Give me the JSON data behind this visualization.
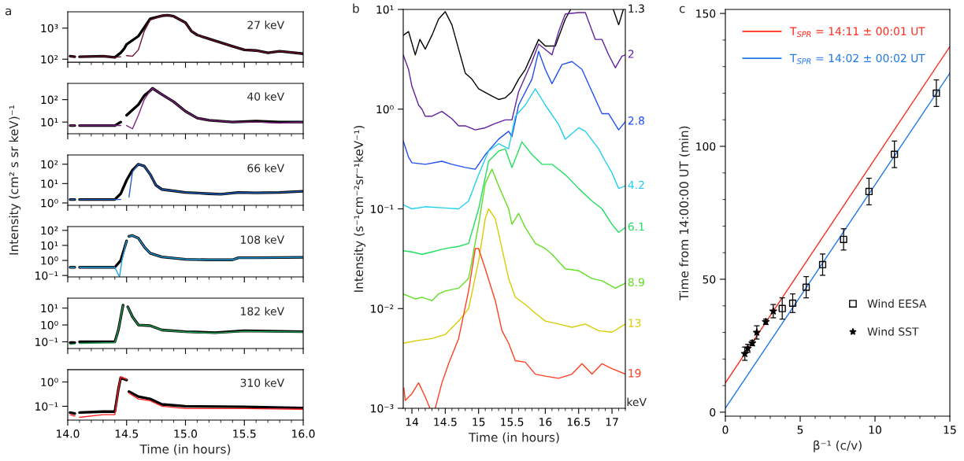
{
  "chart_data": [
    {
      "type": "line",
      "title": "27 keV",
      "annotations": [
        "a"
      ],
      "log": "y",
      "ylim": [
        80,
        3350
      ],
      "yticks": [
        {
          "value": 100,
          "label": "10²"
        },
        {
          "value": 1000,
          "label": "10³"
        }
      ],
      "xlim": [
        14.0,
        16.0
      ],
      "xticks": [
        14.0,
        14.5,
        15.0,
        15.5,
        16.0,
        {
          "value": 14.1,
          "label": null
        },
        {
          "value": 14.2,
          "label": null
        },
        {
          "value": 14.3,
          "label": null
        },
        {
          "value": 14.4,
          "label": null
        },
        {
          "value": 14.6,
          "label": null
        },
        {
          "value": 14.7,
          "label": null
        },
        {
          "value": 14.8,
          "label": null
        },
        {
          "value": 14.9,
          "label": null
        },
        {
          "value": 15.1,
          "label": null
        },
        {
          "value": 15.2,
          "label": null
        },
        {
          "value": 15.3,
          "label": null
        },
        {
          "value": 15.4,
          "label": null
        },
        {
          "value": 15.6,
          "label": null
        },
        {
          "value": 15.7,
          "label": null
        },
        {
          "value": 15.8,
          "label": null
        },
        {
          "value": 15.9,
          "label": null
        }
      ],
      "tick_labels": "y",
      "series": [
        {
          "color": "#000000",
          "x": [
            14.02,
            14.06,
            14.08,
            14.1,
            14.3,
            14.4,
            14.45,
            14.48,
            14.5,
            14.6,
            14.7,
            14.8,
            14.85,
            14.9,
            15.0,
            15.05,
            15.1,
            15.2,
            15.4,
            15.5,
            15.6,
            15.7,
            15.8,
            16.0
          ],
          "values": [
            125,
            120,
            null,
            120,
            125,
            115,
            160,
            220,
            300,
            550,
            2000,
            2500,
            2600,
            2400,
            1500,
            800,
            600,
            450,
            260,
            200,
            190,
            160,
            180,
            150
          ]
        },
        {
          "color": "#6a1030",
          "x": [
            14.02,
            14.06,
            14.08,
            14.1,
            14.3,
            14.4,
            14.45,
            14.48,
            14.5,
            14.55,
            14.6,
            14.65,
            14.7,
            14.8,
            14.85,
            14.9,
            15.0,
            15.05,
            15.1,
            15.2,
            15.4,
            15.5,
            15.6,
            15.7,
            15.8,
            16.0
          ],
          "values": [
            125,
            120,
            null,
            120,
            125,
            115,
            120,
            null,
            130,
            125,
            200,
            800,
            1800,
            2500,
            2600,
            2400,
            1500,
            800,
            600,
            450,
            260,
            200,
            190,
            160,
            180,
            150
          ]
        }
      ]
    },
    {
      "type": "line",
      "title": "40 keV",
      "log": "y",
      "ylim": [
        3,
        530
      ],
      "yticks": [
        {
          "value": 10,
          "label": "10¹"
        },
        {
          "value": 100,
          "label": "10²"
        }
      ],
      "xlim": [
        14.0,
        16.0
      ],
      "xticks": [
        14.0,
        14.5,
        15.0,
        15.5,
        16.0,
        {
          "value": 14.1,
          "label": null
        },
        {
          "value": 14.2,
          "label": null
        },
        {
          "value": 14.3,
          "label": null
        },
        {
          "value": 14.4,
          "label": null
        },
        {
          "value": 14.6,
          "label": null
        },
        {
          "value": 14.7,
          "label": null
        },
        {
          "value": 14.8,
          "label": null
        },
        {
          "value": 14.9,
          "label": null
        },
        {
          "value": 15.1,
          "label": null
        },
        {
          "value": 15.2,
          "label": null
        },
        {
          "value": 15.3,
          "label": null
        },
        {
          "value": 15.4,
          "label": null
        },
        {
          "value": 15.6,
          "label": null
        },
        {
          "value": 15.7,
          "label": null
        },
        {
          "value": 15.8,
          "label": null
        },
        {
          "value": 15.9,
          "label": null
        }
      ],
      "tick_labels": "y",
      "series": [
        {
          "color": "#000000",
          "x": [
            14.02,
            14.06,
            14.08,
            14.1,
            14.3,
            14.4,
            14.45,
            14.48,
            14.5,
            14.6,
            14.65,
            14.7,
            14.72,
            14.8,
            14.9,
            15.0,
            15.1,
            15.2,
            15.4,
            15.6,
            15.8,
            16.0
          ],
          "values": [
            7,
            7,
            null,
            7,
            7,
            7,
            10,
            null,
            20,
            60,
            150,
            250,
            320,
            170,
            80,
            30,
            15,
            12,
            10,
            11,
            10,
            10
          ]
        },
        {
          "color": "#802080",
          "x": [
            14.02,
            14.06,
            14.08,
            14.1,
            14.3,
            14.4,
            14.45,
            14.48,
            14.5,
            14.55,
            14.6,
            14.65,
            14.7,
            14.72,
            14.8,
            14.9,
            15.0,
            15.1,
            15.2,
            15.4,
            15.6,
            15.8,
            16.0
          ],
          "values": [
            7,
            7,
            null,
            7,
            7,
            7,
            7,
            null,
            7,
            5,
            20,
            100,
            250,
            320,
            170,
            80,
            30,
            15,
            12,
            10,
            10,
            9,
            10
          ]
        }
      ]
    },
    {
      "type": "line",
      "title": "66 keV",
      "log": "y",
      "ylabel": "Intensity (cm² s sr keV)⁻¹",
      "ylim": [
        0.75,
        300
      ],
      "yticks": [
        {
          "value": 1,
          "label": "10⁰"
        },
        {
          "value": 10,
          "label": "10¹"
        },
        {
          "value": 100,
          "label": "10²"
        }
      ],
      "xlim": [
        14.0,
        16.0
      ],
      "xticks": [
        14.0,
        14.5,
        15.0,
        15.5,
        16.0,
        {
          "value": 14.1,
          "label": null
        },
        {
          "value": 14.2,
          "label": null
        },
        {
          "value": 14.3,
          "label": null
        },
        {
          "value": 14.4,
          "label": null
        },
        {
          "value": 14.6,
          "label": null
        },
        {
          "value": 14.7,
          "label": null
        },
        {
          "value": 14.8,
          "label": null
        },
        {
          "value": 14.9,
          "label": null
        },
        {
          "value": 15.1,
          "label": null
        },
        {
          "value": 15.2,
          "label": null
        },
        {
          "value": 15.3,
          "label": null
        },
        {
          "value": 15.4,
          "label": null
        },
        {
          "value": 15.6,
          "label": null
        },
        {
          "value": 15.7,
          "label": null
        },
        {
          "value": 15.8,
          "label": null
        },
        {
          "value": 15.9,
          "label": null
        }
      ],
      "tick_labels": "y",
      "series": [
        {
          "color": "#000000",
          "x": [
            14.02,
            14.06,
            14.08,
            14.1,
            14.4,
            14.45,
            14.5,
            14.55,
            14.6,
            14.65,
            14.7,
            14.75,
            14.8,
            15.0,
            15.2,
            15.3,
            15.45,
            15.6,
            15.8,
            16.0
          ],
          "values": [
            1.5,
            1.5,
            null,
            1.5,
            1.5,
            3,
            15,
            50,
            100,
            80,
            30,
            8,
            5,
            3.5,
            3,
            2.8,
            3.5,
            3.3,
            3.5,
            4
          ]
        },
        {
          "color": "#2060c0",
          "x": [
            14.02,
            14.06,
            14.08,
            14.1,
            14.45,
            14.48,
            14.52,
            14.55,
            14.6,
            14.65,
            14.7,
            14.75,
            14.8,
            15.0,
            15.2,
            15.3,
            15.45,
            15.6,
            15.8,
            16.0
          ],
          "values": [
            1.5,
            1.5,
            null,
            1.5,
            1.5,
            null,
            2,
            40,
            100,
            80,
            30,
            8,
            5,
            3.5,
            3,
            2.8,
            3.5,
            3.3,
            3.5,
            4
          ]
        }
      ]
    },
    {
      "type": "line",
      "title": "108 keV",
      "log": "y",
      "ylim": [
        0.08,
        180
      ],
      "yticks": [
        {
          "value": 0.1,
          "label": "10⁻¹"
        },
        {
          "value": 1,
          "label": "10⁰"
        },
        {
          "value": 10,
          "label": "10¹"
        },
        {
          "value": 100,
          "label": "10²"
        }
      ],
      "xlim": [
        14.0,
        16.0
      ],
      "xticks": [
        14.0,
        14.5,
        15.0,
        15.5,
        16.0,
        {
          "value": 14.1,
          "label": null
        },
        {
          "value": 14.2,
          "label": null
        },
        {
          "value": 14.3,
          "label": null
        },
        {
          "value": 14.4,
          "label": null
        },
        {
          "value": 14.6,
          "label": null
        },
        {
          "value": 14.7,
          "label": null
        },
        {
          "value": 14.8,
          "label": null
        },
        {
          "value": 14.9,
          "label": null
        },
        {
          "value": 15.1,
          "label": null
        },
        {
          "value": 15.2,
          "label": null
        },
        {
          "value": 15.3,
          "label": null
        },
        {
          "value": 15.4,
          "label": null
        },
        {
          "value": 15.6,
          "label": null
        },
        {
          "value": 15.7,
          "label": null
        },
        {
          "value": 15.8,
          "label": null
        },
        {
          "value": 15.9,
          "label": null
        }
      ],
      "tick_labels": "y",
      "series": [
        {
          "color": "#000000",
          "x": [
            14.02,
            14.06,
            14.08,
            14.1,
            14.4,
            14.45,
            14.5,
            14.51,
            14.52,
            14.55,
            14.6,
            14.65,
            14.7,
            14.8,
            15.0,
            15.2,
            15.4,
            15.45,
            15.6,
            16.0
          ],
          "values": [
            0.35,
            0.35,
            null,
            0.35,
            0.35,
            1,
            20,
            null,
            40,
            45,
            30,
            8,
            3,
            1.7,
            1.2,
            1.1,
            1.1,
            1.5,
            1.5,
            1.6
          ]
        },
        {
          "color": "#20a0e0",
          "x": [
            14.02,
            14.06,
            14.08,
            14.1,
            14.4,
            14.44,
            14.46,
            14.5,
            14.51,
            14.52,
            14.55,
            14.6,
            14.65,
            14.7,
            14.8,
            15.0,
            15.2,
            15.4,
            15.45,
            15.6,
            16.0
          ],
          "values": [
            0.35,
            0.35,
            null,
            0.35,
            0.35,
            0.08,
            1,
            20,
            null,
            40,
            45,
            30,
            8,
            3,
            1.7,
            1.2,
            1.1,
            1.1,
            1.5,
            1.5,
            1.6
          ]
        }
      ]
    },
    {
      "type": "line",
      "title": "182 keV",
      "log": "y",
      "ylim": [
        0.04,
        39
      ],
      "yticks": [
        {
          "value": 0.1,
          "label": "10⁻¹"
        },
        {
          "value": 1,
          "label": "10⁰"
        },
        {
          "value": 10,
          "label": "10¹"
        }
      ],
      "xlim": [
        14.0,
        16.0
      ],
      "xticks": [
        14.0,
        14.5,
        15.0,
        15.5,
        16.0,
        {
          "value": 14.1,
          "label": null
        },
        {
          "value": 14.2,
          "label": null
        },
        {
          "value": 14.3,
          "label": null
        },
        {
          "value": 14.4,
          "label": null
        },
        {
          "value": 14.6,
          "label": null
        },
        {
          "value": 14.7,
          "label": null
        },
        {
          "value": 14.8,
          "label": null
        },
        {
          "value": 14.9,
          "label": null
        },
        {
          "value": 15.1,
          "label": null
        },
        {
          "value": 15.2,
          "label": null
        },
        {
          "value": 15.3,
          "label": null
        },
        {
          "value": 15.4,
          "label": null
        },
        {
          "value": 15.6,
          "label": null
        },
        {
          "value": 15.7,
          "label": null
        },
        {
          "value": 15.8,
          "label": null
        },
        {
          "value": 15.9,
          "label": null
        }
      ],
      "tick_labels": "y",
      "series": [
        {
          "color": "#000000",
          "x": [
            14.02,
            14.06,
            14.08,
            14.1,
            14.4,
            14.43,
            14.47,
            14.49,
            14.51,
            14.55,
            14.6,
            14.7,
            14.8,
            15.0,
            15.25,
            15.5,
            16.0
          ],
          "values": [
            0.09,
            0.09,
            null,
            0.1,
            0.1,
            0.5,
            15,
            null,
            12,
            3,
            1,
            0.9,
            0.5,
            0.4,
            0.35,
            0.45,
            0.4
          ]
        },
        {
          "color": "#20a050",
          "x": [
            14.02,
            14.06,
            14.08,
            14.1,
            14.4,
            14.43,
            14.47,
            14.49,
            14.51,
            14.55,
            14.6,
            14.7,
            14.8,
            15.0,
            15.25,
            15.5,
            16.0
          ],
          "values": [
            0.07,
            0.075,
            null,
            0.08,
            0.09,
            0.5,
            15,
            null,
            12,
            3,
            1,
            0.9,
            0.5,
            0.38,
            0.33,
            0.42,
            0.38
          ]
        }
      ]
    },
    {
      "type": "line",
      "title": "310 keV",
      "xlabel": "Time (in hours)",
      "log": "y",
      "ylim": [
        0.027,
        3.2
      ],
      "yticks": [
        {
          "value": 0.1,
          "label": "10⁻¹"
        },
        {
          "value": 1,
          "label": "10⁰"
        }
      ],
      "xlim": [
        14.0,
        16.0
      ],
      "xticks": [
        {
          "value": 14,
          "label": "14.0"
        },
        14.5,
        {
          "value": 15,
          "label": "15.0"
        },
        15.5,
        {
          "value": 16,
          "label": "16.0"
        },
        {
          "value": 14.1,
          "label": null
        },
        {
          "value": 14.2,
          "label": null
        },
        {
          "value": 14.3,
          "label": null
        },
        {
          "value": 14.4,
          "label": null
        },
        {
          "value": 14.6,
          "label": null
        },
        {
          "value": 14.7,
          "label": null
        },
        {
          "value": 14.8,
          "label": null
        },
        {
          "value": 14.9,
          "label": null
        },
        {
          "value": 15.1,
          "label": null
        },
        {
          "value": 15.2,
          "label": null
        },
        {
          "value": 15.3,
          "label": null
        },
        {
          "value": 15.4,
          "label": null
        },
        {
          "value": 15.6,
          "label": null
        },
        {
          "value": 15.7,
          "label": null
        },
        {
          "value": 15.8,
          "label": null
        },
        {
          "value": 15.9,
          "label": null
        }
      ],
      "series": [
        {
          "color": "#000000",
          "x": [
            14.02,
            14.06,
            14.08,
            14.1,
            14.3,
            14.4,
            14.43,
            14.45,
            14.5,
            14.51,
            14.52,
            14.6,
            14.7,
            14.8,
            15.0,
            15.5,
            16.0
          ],
          "values": [
            0.055,
            0.05,
            null,
            0.055,
            0.06,
            0.06,
            0.5,
            1.5,
            1.2,
            null,
            0.4,
            0.25,
            0.2,
            0.12,
            0.1,
            0.095,
            0.085
          ]
        },
        {
          "color": "#ff2020",
          "x": [
            14.02,
            14.06,
            14.08,
            14.1,
            14.3,
            14.4,
            14.43,
            14.45,
            14.5,
            14.51,
            14.52,
            14.6,
            14.7,
            14.8,
            15.0,
            15.5,
            16.0
          ],
          "values": [
            0.045,
            0.04,
            null,
            0.035,
            0.045,
            0.045,
            0.5,
            1.6,
            1.3,
            null,
            0.35,
            0.2,
            0.17,
            0.1,
            0.08,
            0.08,
            0.075
          ]
        }
      ]
    },
    {
      "type": "line",
      "annotations": [
        "b",
        "keV"
      ],
      "ylabel": "Intensity (s⁻¹cm⁻²sr⁻¹keV⁻¹)",
      "xlabel": "Time (in hours)",
      "log": "y",
      "legend": false,
      "ylim": [
        0.001,
        10
      ],
      "yticks": [
        {
          "value": 0.001,
          "label": "10⁻³"
        },
        {
          "value": 0.01,
          "label": "10⁻²"
        },
        {
          "value": 0.1,
          "label": "10⁻¹"
        },
        {
          "value": 1,
          "label": "10⁰"
        },
        {
          "value": 10,
          "label": "10¹"
        }
      ],
      "xlim": [
        13.87,
        17.2
      ],
      "xticks": [
        14,
        14.5,
        15,
        15.5,
        16,
        16.5,
        17,
        {
          "value": 13.9,
          "label": null
        },
        {
          "value": 14.1,
          "label": null
        },
        {
          "value": 14.2,
          "label": null
        },
        {
          "value": 14.3,
          "label": null
        },
        {
          "value": 14.4,
          "label": null
        },
        {
          "value": 14.6,
          "label": null
        },
        {
          "value": 14.7,
          "label": null
        },
        {
          "value": 14.8,
          "label": null
        },
        {
          "value": 14.9,
          "label": null
        },
        {
          "value": 15.1,
          "label": null
        },
        {
          "value": 15.2,
          "label": null
        },
        {
          "value": 15.3,
          "label": null
        },
        {
          "value": 15.4,
          "label": null
        },
        {
          "value": 15.6,
          "label": null
        },
        {
          "value": 15.7,
          "label": null
        },
        {
          "value": 15.8,
          "label": null
        },
        {
          "value": 15.9,
          "label": null
        },
        {
          "value": 16.1,
          "label": null
        },
        {
          "value": 16.2,
          "label": null
        },
        {
          "value": 16.3,
          "label": null
        },
        {
          "value": 16.4,
          "label": null
        },
        {
          "value": 16.6,
          "label": null
        },
        {
          "value": 16.7,
          "label": null
        },
        {
          "value": 16.8,
          "label": null
        },
        {
          "value": 16.9,
          "label": null
        },
        {
          "value": 17.1,
          "label": null
        },
        {
          "value": 17.2,
          "label": null
        }
      ],
      "series": [
        {
          "name": "1.3",
          "color": "#000000",
          "x": [
            13.87,
            13.95,
            14.05,
            14.12,
            14.2,
            14.3,
            14.4,
            14.5,
            14.6,
            14.7,
            14.8,
            14.9,
            15.0,
            15.2,
            15.3,
            15.4,
            15.5,
            15.6,
            15.7,
            15.9,
            16.0,
            16.15,
            16.3,
            16.38,
            16.5,
            17.02,
            17.1,
            17.17
          ],
          "values": [
            5.5,
            6,
            3.5,
            5,
            4,
            5.5,
            8,
            9.5,
            7,
            4,
            2.3,
            2.0,
            1.6,
            1.35,
            1.25,
            1.3,
            1.5,
            2,
            2.5,
            5,
            4.3,
            4.3,
            8,
            10,
            null,
            10,
            7,
            10
          ]
        },
        {
          "name": "2",
          "color": "#6020a0",
          "x": [
            13.87,
            13.95,
            14.0,
            14.1,
            14.15,
            14.2,
            14.3,
            14.45,
            14.6,
            14.7,
            14.8,
            14.95,
            15.1,
            15.25,
            15.4,
            15.5,
            15.6,
            15.8,
            15.9,
            16.1,
            16.2,
            16.3,
            16.5,
            16.6,
            16.75,
            16.85,
            16.95,
            17.05,
            17.15,
            17.2
          ],
          "values": [
            3.5,
            2.5,
            1.7,
            1.1,
            1.0,
            0.85,
            0.85,
            0.95,
            0.8,
            0.68,
            0.68,
            0.62,
            0.65,
            0.72,
            0.78,
            0.78,
            1.5,
            3,
            4.5,
            3.5,
            6,
            9,
            9.3,
            9.3,
            5,
            5,
            3.5,
            2.6,
            3.4,
            3.5
          ]
        },
        {
          "name": "2.8",
          "color": "#2050f0",
          "x": [
            13.87,
            13.95,
            14.0,
            14.2,
            14.45,
            14.6,
            14.8,
            14.95,
            15.1,
            15.3,
            15.45,
            15.5,
            15.6,
            15.8,
            15.9,
            16.0,
            16.1,
            16.25,
            16.4,
            16.55,
            16.7,
            16.85,
            16.95,
            17.1,
            17.2
          ],
          "values": [
            0.48,
            0.33,
            0.29,
            0.28,
            0.3,
            0.28,
            0.26,
            0.25,
            0.35,
            0.5,
            0.6,
            0.53,
            1.1,
            2.0,
            3.8,
            2.5,
            1.8,
            2.8,
            3.0,
            2.5,
            1.5,
            0.9,
            0.9,
            0.62,
            0.75
          ]
        },
        {
          "name": "4.2",
          "color": "#20d0f0",
          "x": [
            13.87,
            14.0,
            14.2,
            14.5,
            14.7,
            14.85,
            15.0,
            15.15,
            15.3,
            15.45,
            15.55,
            15.7,
            15.85,
            16.0,
            16.2,
            16.3,
            16.5,
            16.6,
            16.8,
            16.9,
            17.0,
            17.1,
            17.2
          ],
          "values": [
            0.11,
            0.1,
            0.105,
            0.102,
            0.1,
            0.12,
            0.22,
            0.38,
            0.45,
            0.4,
            0.85,
            1.1,
            1.6,
            1.1,
            0.7,
            0.5,
            0.65,
            0.6,
            0.4,
            0.3,
            0.23,
            0.16,
            0.17
          ]
        },
        {
          "name": "6.1",
          "color": "#20e060",
          "x": [
            13.87,
            14.0,
            14.15,
            14.3,
            14.5,
            14.7,
            14.85,
            15.0,
            15.15,
            15.3,
            15.4,
            15.5,
            15.65,
            15.8,
            15.95,
            16.1,
            16.3,
            16.5,
            16.7,
            16.85,
            17.0,
            17.1,
            17.2
          ],
          "values": [
            0.038,
            0.037,
            0.035,
            0.037,
            0.04,
            0.042,
            0.045,
            0.1,
            0.3,
            0.38,
            0.4,
            0.26,
            0.47,
            0.35,
            0.28,
            0.28,
            0.22,
            0.16,
            0.12,
            0.1,
            0.07,
            0.058,
            0.065
          ]
        },
        {
          "name": "8.9",
          "color": "#60e020",
          "x": [
            13.87,
            14.05,
            14.15,
            14.3,
            14.4,
            14.5,
            14.7,
            14.85,
            15.0,
            15.1,
            15.2,
            15.3,
            15.45,
            15.5,
            15.6,
            15.7,
            15.85,
            16.0,
            16.1,
            16.3,
            16.5,
            16.7,
            16.85,
            17.05,
            17.2
          ],
          "values": [
            0.014,
            0.0125,
            0.013,
            0.012,
            0.014,
            0.015,
            0.016,
            0.02,
            0.07,
            0.18,
            0.25,
            0.17,
            0.1,
            0.07,
            0.09,
            0.065,
            0.045,
            0.04,
            0.035,
            0.025,
            0.024,
            0.02,
            0.019,
            0.016,
            0.018
          ]
        },
        {
          "name": "13",
          "color": "#d8cc00",
          "x": [
            13.87,
            14.1,
            14.3,
            14.5,
            14.7,
            14.85,
            15.0,
            15.1,
            15.15,
            15.25,
            15.35,
            15.45,
            15.55,
            15.7,
            15.85,
            16.0,
            16.2,
            16.4,
            16.6,
            16.8,
            17.0,
            17.2
          ],
          "values": [
            0.0045,
            0.0048,
            0.005,
            0.0055,
            0.0075,
            0.01,
            0.03,
            0.08,
            0.1,
            0.08,
            0.04,
            0.02,
            0.013,
            0.011,
            0.009,
            0.0075,
            0.007,
            0.0065,
            0.007,
            0.006,
            0.0058,
            0.007
          ]
        },
        {
          "name": "19",
          "color": "#ff4020",
          "x": [
            13.88,
            13.9,
            14.0,
            14.1,
            14.2,
            14.27,
            14.3,
            14.35,
            14.45,
            14.55,
            14.7,
            14.85,
            14.95,
            15.0,
            15.1,
            15.25,
            15.35,
            15.45,
            15.55,
            15.7,
            15.85,
            16.0,
            16.2,
            16.4,
            16.55,
            16.7,
            16.85,
            17.0,
            17.2
          ],
          "values": [
            0.0016,
            0.0012,
            0.0014,
            0.0018,
            0.0013,
            0.001,
            null,
            0.001,
            0.0018,
            0.0028,
            0.005,
            0.015,
            0.04,
            0.04,
            0.025,
            0.012,
            0.006,
            0.0045,
            0.003,
            0.0029,
            0.0022,
            0.0021,
            0.002,
            0.0022,
            0.0028,
            0.0022,
            0.0028,
            0.0025,
            0.0022
          ]
        }
      ]
    },
    {
      "type": "scatter",
      "annotations": [
        "c"
      ],
      "ylabel": "Time from 14:00:00 UT (min)",
      "xlabel": "β⁻¹ (c/v)",
      "legend": "top left",
      "xlim": [
        0,
        15
      ],
      "ylim": [
        -1.5,
        151.5
      ],
      "xticks": [
        0,
        5,
        10,
        15,
        {
          "value": 1,
          "label": null
        },
        {
          "value": 2,
          "label": null
        },
        {
          "value": 3,
          "label": null
        },
        {
          "value": 4,
          "label": null
        },
        {
          "value": 6,
          "label": null
        },
        {
          "value": 7,
          "label": null
        },
        {
          "value": 8,
          "label": null
        },
        {
          "value": 9,
          "label": null
        },
        {
          "value": 11,
          "label": null
        },
        {
          "value": 12,
          "label": null
        },
        {
          "value": 13,
          "label": null
        },
        {
          "value": 14,
          "label": null
        }
      ],
      "yticks": [
        0,
        50,
        100,
        150,
        {
          "value": 10,
          "label": null
        },
        {
          "value": 20,
          "label": null
        },
        {
          "value": 30,
          "label": null
        },
        {
          "value": 40,
          "label": null
        },
        {
          "value": 60,
          "label": null
        },
        {
          "value": 70,
          "label": null
        },
        {
          "value": 80,
          "label": null
        },
        {
          "value": 90,
          "label": null
        },
        {
          "value": 110,
          "label": null
        },
        {
          "value": 120,
          "label": null
        },
        {
          "value": 130,
          "label": null
        },
        {
          "value": 140,
          "label": null
        }
      ],
      "series": [
        {
          "type": "line",
          "name": "T$_{SPR}$ = 14:11 ± 00:01 UT",
          "color": "#ff2a1a",
          "x": [
            0,
            15
          ],
          "values": [
            11,
            137.5
          ]
        },
        {
          "type": "line",
          "name": "T$_{SPR}$ = 14:02 ± 00:02 UT",
          "color": "#1f78e8",
          "x": [
            0,
            15
          ],
          "values": [
            1.5,
            127.5
          ]
        },
        {
          "name": "Wind EESA",
          "marker": "square",
          "color": "#000000",
          "x": [
            3.8,
            4.5,
            5.4,
            6.5,
            7.9,
            9.6,
            11.3,
            14.1
          ],
          "values": [
            39,
            41,
            47,
            55.5,
            65,
            83,
            97,
            120
          ],
          "errors": [
            4,
            3.5,
            4,
            4,
            4,
            5,
            5,
            5
          ]
        },
        {
          "name": "Wind SST",
          "marker": "star",
          "color": "#000000",
          "x": [
            1.3,
            1.5,
            1.8,
            2.1,
            2.7,
            3.2
          ],
          "values": [
            22,
            24,
            26,
            30,
            34,
            38
          ],
          "errors": [
            2.5,
            1.5,
            1,
            2.5,
            1,
            2.5
          ]
        }
      ]
    }
  ]
}
